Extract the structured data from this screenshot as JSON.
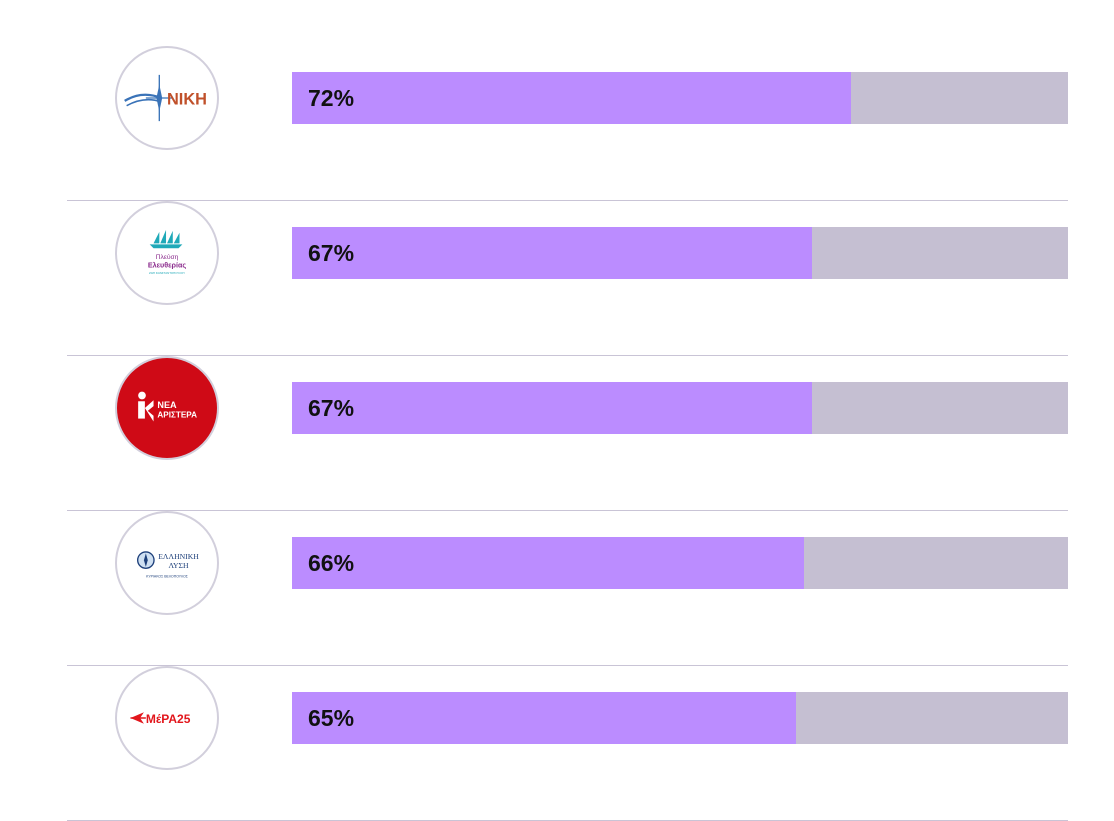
{
  "chart_data": {
    "type": "bar",
    "orientation": "horizontal",
    "unit": "%",
    "ylim": [
      0,
      100
    ],
    "categories": [
      "ΝΙΚΗ",
      "Πλεύση Ελευθερίας",
      "ΝΕΑ ΑΡΙΣΤΕΡΑ",
      "ΕΛΛΗΝΙΚΗ ΛΥΣΗ",
      "ΜέΡΑ25"
    ],
    "values": [
      72,
      67,
      67,
      66,
      65
    ],
    "labels": [
      "72%",
      "67%",
      "67%",
      "66%",
      "65%"
    ]
  },
  "logos": {
    "niki": {
      "text": "ΝΙΚΗ"
    },
    "plefsi": {
      "line1": "Πλεύση",
      "line2": "Ελευθερίας",
      "line3": "ΖΩΗ ΚΩΝΣΤΑΝΤΟΠΟΥΛΟΥ"
    },
    "nea_aristera": {
      "line1": "ΝΕΑ",
      "line2": "ΑΡΙΣΤΕΡΑ"
    },
    "elliniki_lysi": {
      "line1": "ΕΛΛΗΝΙΚΗ",
      "line2": "ΛΥΣΗ",
      "line3": "ΚΥΡΙΑΚΟΣ ΒΕΛΟΠΟΥΛΟΣ"
    },
    "mera25": {
      "text": "ΜέΡΑ25"
    }
  },
  "colors": {
    "fill": "#bb8cff",
    "track": "#c5bfd2",
    "divider": "#c9c4d6",
    "niki_orange": "#c0502a",
    "niki_blue": "#3a73b8",
    "plefsi_teal": "#1fa9b8",
    "plefsi_purple": "#8a2a8c",
    "nea_red": "#cf0a16",
    "lysi_navy": "#1d3f7a",
    "mera_red": "#e2161c"
  }
}
